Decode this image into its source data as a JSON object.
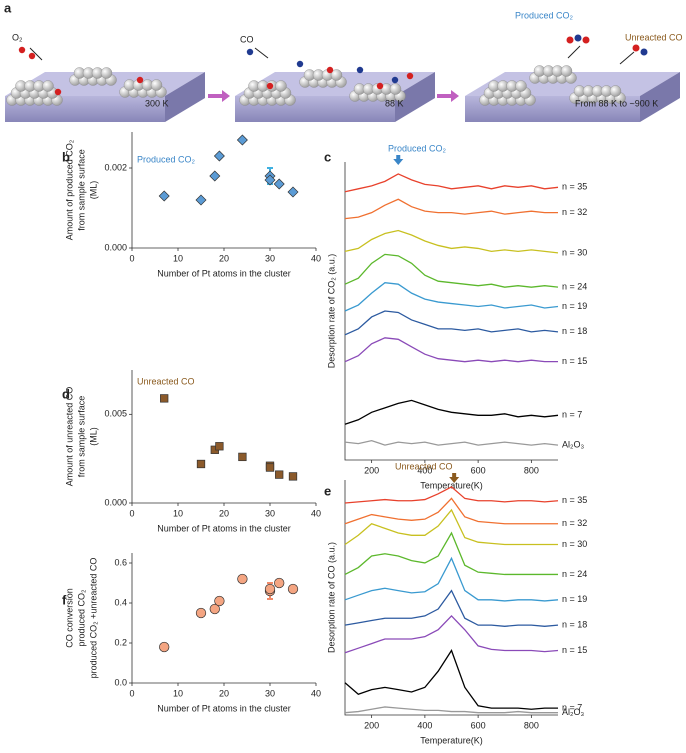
{
  "panel_a": {
    "label": "a",
    "o2": "O₂",
    "co": "CO",
    "t1": "300 K",
    "t2": "88 K",
    "t3": "From 88 K to ~900 K",
    "produced": "Produced CO₂",
    "unreacted": "Unreacted CO"
  },
  "chart_data": [
    {
      "type": "scatter",
      "label": "b",
      "title": "Produced CO₂",
      "title_color": "#3a86c8",
      "xlabel": "Number of Pt atoms in the cluster",
      "ylabel": [
        "Amount of produced  CO₂",
        "from sample surface",
        "(ML)"
      ],
      "marker": "diamond",
      "color": "#5b9bd5",
      "error_color": "#3fb0e0",
      "x": [
        7,
        15,
        18,
        19,
        24,
        30,
        30,
        32,
        35
      ],
      "values": [
        0.0013,
        0.0012,
        0.0018,
        0.0023,
        0.0027,
        0.0018,
        0.0017,
        0.0016,
        0.0014
      ],
      "errors": [
        null,
        null,
        null,
        null,
        null,
        0.0002,
        null,
        null,
        null
      ],
      "xlim": [
        0,
        40
      ],
      "xticks": [
        0,
        10,
        20,
        30,
        40
      ],
      "ylim": [
        0,
        0.0029
      ],
      "yticks": [
        {
          "value": 0,
          "label": "0.000"
        },
        {
          "value": 0.002,
          "label": "0.002"
        }
      ]
    },
    {
      "type": "line",
      "label": "c",
      "title": "Produced CO₂",
      "title_color": "#3a86c8",
      "arrow_color": "#3a86c8",
      "xlabel": "Temperature(K)",
      "ylabel": [
        "Desorption rate of CO₂ (a.u.)"
      ],
      "x": [
        100,
        150,
        200,
        250,
        300,
        350,
        400,
        450,
        500,
        550,
        600,
        650,
        700,
        750,
        800,
        850,
        900
      ],
      "xlim": [
        100,
        900
      ],
      "xticks": [
        200,
        400,
        600,
        800
      ],
      "ylim": [
        0,
        10
      ],
      "series": [
        {
          "name": "n = 35",
          "color": "#e8412c",
          "values": [
            9.0,
            9.1,
            9.2,
            9.35,
            9.6,
            9.4,
            9.25,
            9.2,
            9.1,
            9.15,
            9.2,
            9.1,
            9.2,
            9.15,
            9.2,
            9.1,
            9.15
          ]
        },
        {
          "name": "n = 32",
          "color": "#f07030",
          "values": [
            8.1,
            8.15,
            8.3,
            8.55,
            8.75,
            8.5,
            8.35,
            8.3,
            8.3,
            8.25,
            8.3,
            8.35,
            8.25,
            8.3,
            8.35,
            8.3,
            8.3
          ]
        },
        {
          "name": "n = 30",
          "color": "#c8c020",
          "values": [
            7.0,
            7.1,
            7.4,
            7.6,
            7.7,
            7.55,
            7.35,
            7.2,
            7.1,
            7.15,
            7.1,
            7.0,
            7.05,
            7.0,
            7.05,
            7.0,
            6.95
          ]
        },
        {
          "name": "n = 24",
          "color": "#5cb82c",
          "values": [
            5.9,
            6.1,
            6.6,
            6.9,
            6.85,
            6.6,
            6.2,
            6.0,
            5.95,
            5.9,
            5.85,
            5.9,
            5.8,
            5.85,
            5.8,
            5.85,
            5.8
          ]
        },
        {
          "name": "n = 19",
          "color": "#3a9ad0",
          "values": [
            5.0,
            5.2,
            5.6,
            5.95,
            5.9,
            5.6,
            5.4,
            5.3,
            5.25,
            5.2,
            5.15,
            5.2,
            5.1,
            5.15,
            5.2,
            5.1,
            5.15
          ]
        },
        {
          "name": "n = 18",
          "color": "#2c5aa0",
          "values": [
            4.2,
            4.4,
            4.8,
            5.0,
            4.95,
            4.7,
            4.55,
            4.4,
            4.4,
            4.35,
            4.4,
            4.3,
            4.35,
            4.4,
            4.3,
            4.35,
            4.3
          ]
        },
        {
          "name": "n = 15",
          "color": "#8a4ab8",
          "values": [
            3.3,
            3.5,
            3.9,
            4.1,
            4.05,
            3.8,
            3.55,
            3.4,
            3.35,
            3.3,
            3.35,
            3.3,
            3.35,
            3.3,
            3.35,
            3.3,
            3.3
          ]
        },
        {
          "name": "n = 7",
          "color": "#000000",
          "values": [
            1.2,
            1.35,
            1.6,
            1.75,
            1.9,
            2.0,
            1.85,
            1.7,
            1.6,
            1.55,
            1.5,
            1.5,
            1.55,
            1.45,
            1.5,
            1.45,
            1.5
          ]
        },
        {
          "name": "Al₂O₃",
          "color": "#999999",
          "values": [
            0.6,
            0.55,
            0.65,
            0.5,
            0.6,
            0.55,
            0.6,
            0.5,
            0.55,
            0.6,
            0.5,
            0.55,
            0.6,
            0.55,
            0.5,
            0.55,
            0.5
          ]
        }
      ]
    },
    {
      "type": "scatter",
      "label": "d",
      "title": "Unreacted CO",
      "title_color": "#8a5a1e",
      "xlabel": "Number of Pt atoms in the cluster",
      "ylabel": [
        "Amount of unreacted CO",
        "from sample surface",
        "(ML)"
      ],
      "marker": "square",
      "color": "#8b5a2b",
      "error_color": "#8b5a2b",
      "x": [
        7,
        15,
        18,
        19,
        24,
        30,
        30,
        32,
        35
      ],
      "values": [
        0.0059,
        0.0022,
        0.003,
        0.0032,
        0.0026,
        0.0021,
        0.002,
        0.0016,
        0.0015
      ],
      "errors": [
        null,
        null,
        null,
        null,
        null,
        null,
        null,
        null,
        null
      ],
      "xlim": [
        0,
        40
      ],
      "xticks": [
        0,
        10,
        20,
        30,
        40
      ],
      "ylim": [
        0,
        0.0075
      ],
      "yticks": [
        {
          "value": 0,
          "label": "0.000"
        },
        {
          "value": 0.005,
          "label": "0.005"
        }
      ]
    },
    {
      "type": "line",
      "label": "e",
      "title": "Unreacted CO",
      "title_color": "#8a5a1e",
      "arrow_color": "#8a5a1e",
      "xlabel": "Temperature(K)",
      "ylabel": [
        "Desorption rate of CO (a.u.)"
      ],
      "x": [
        100,
        150,
        200,
        250,
        300,
        350,
        400,
        450,
        500,
        550,
        600,
        650,
        700,
        750,
        800,
        850,
        900
      ],
      "xlim": [
        100,
        900
      ],
      "xticks": [
        200,
        400,
        600,
        800
      ],
      "ylim": [
        0,
        10.2
      ],
      "series": [
        {
          "name": "n = 35",
          "color": "#e8412c",
          "values": [
            9.2,
            9.25,
            9.3,
            9.35,
            9.3,
            9.3,
            9.35,
            9.6,
            9.9,
            9.4,
            9.3,
            9.3,
            9.25,
            9.3,
            9.3,
            9.25,
            9.3
          ]
        },
        {
          "name": "n = 32",
          "color": "#f07030",
          "values": [
            8.3,
            8.5,
            8.7,
            8.6,
            8.5,
            8.45,
            8.5,
            8.8,
            9.4,
            8.6,
            8.4,
            8.35,
            8.3,
            8.3,
            8.3,
            8.3,
            8.3
          ]
        },
        {
          "name": "n = 30",
          "color": "#c8c020",
          "values": [
            7.4,
            7.8,
            8.3,
            8.1,
            7.9,
            7.8,
            7.8,
            8.2,
            8.9,
            7.7,
            7.5,
            7.45,
            7.4,
            7.4,
            7.4,
            7.4,
            7.4
          ]
        },
        {
          "name": "n = 24",
          "color": "#5cb82c",
          "values": [
            6.1,
            6.4,
            6.9,
            7.0,
            6.9,
            6.7,
            6.6,
            6.9,
            7.9,
            6.5,
            6.2,
            6.15,
            6.1,
            6.1,
            6.1,
            6.1,
            6.1
          ]
        },
        {
          "name": "n = 19",
          "color": "#3a9ad0",
          "values": [
            5.0,
            5.2,
            5.4,
            5.5,
            5.4,
            5.3,
            5.35,
            5.7,
            6.8,
            5.4,
            5.0,
            5.0,
            4.95,
            5.0,
            5.0,
            4.95,
            5.0
          ]
        },
        {
          "name": "n = 18",
          "color": "#2c5aa0",
          "values": [
            3.9,
            4.0,
            4.1,
            4.2,
            4.2,
            4.2,
            4.3,
            4.6,
            5.4,
            4.2,
            3.9,
            3.9,
            3.85,
            3.9,
            3.9,
            3.85,
            3.9
          ]
        },
        {
          "name": "n = 15",
          "color": "#8a4ab8",
          "values": [
            2.7,
            2.9,
            3.1,
            3.3,
            3.3,
            3.3,
            3.4,
            3.7,
            4.3,
            3.7,
            3.0,
            2.85,
            2.8,
            2.8,
            2.8,
            2.75,
            2.8
          ]
        },
        {
          "name": "n = 7",
          "color": "#000000",
          "values": [
            1.4,
            0.9,
            1.1,
            1.2,
            1.1,
            1.0,
            1.2,
            1.9,
            2.8,
            1.2,
            0.4,
            0.3,
            0.3,
            0.3,
            0.25,
            0.3,
            0.3
          ]
        },
        {
          "name": "Al₂O₃",
          "color": "#999999",
          "values": [
            0.1,
            0.15,
            0.25,
            0.35,
            0.3,
            0.25,
            0.2,
            0.2,
            0.15,
            0.15,
            0.1,
            0.1,
            0.1,
            0.15,
            0.1,
            0.1,
            0.1
          ]
        }
      ]
    },
    {
      "type": "scatter",
      "label": "f",
      "xlabel": "Number of Pt atoms in the cluster",
      "ylabel": [
        "CO conversion",
        "produced CO₂",
        "produced CO₂ +unreacted CO"
      ],
      "marker": "circle",
      "color": "#f4a582",
      "error_color": "#f08a6a",
      "x": [
        7,
        15,
        18,
        19,
        24,
        30,
        30,
        32,
        35
      ],
      "values": [
        0.18,
        0.35,
        0.37,
        0.41,
        0.52,
        0.46,
        0.47,
        0.5,
        0.47
      ],
      "errors": [
        null,
        null,
        null,
        null,
        null,
        0.04,
        null,
        null,
        null
      ],
      "xlim": [
        0,
        40
      ],
      "xticks": [
        0,
        10,
        20,
        30,
        40
      ],
      "ylim": [
        0,
        0.65
      ],
      "yticks": [
        {
          "value": 0,
          "label": "0.0"
        },
        {
          "value": 0.2,
          "label": "0.2"
        },
        {
          "value": 0.4,
          "label": "0.4"
        },
        {
          "value": 0.6,
          "label": "0.6"
        }
      ]
    }
  ]
}
